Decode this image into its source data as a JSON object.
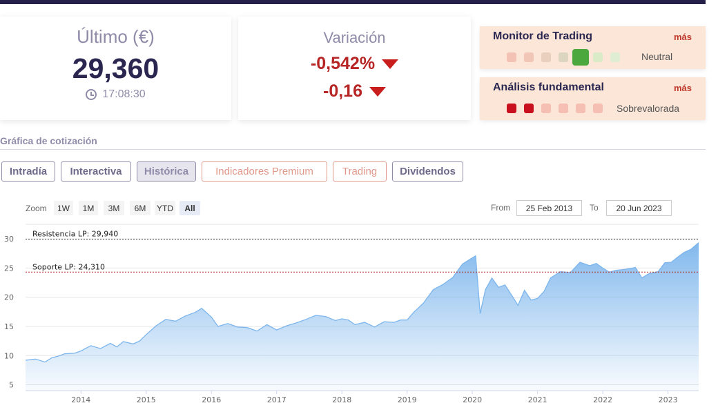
{
  "ultimo": {
    "label": "Último (€)",
    "price": "29,360",
    "time": "17:08:30"
  },
  "variacion": {
    "label": "Variación",
    "percent": "-0,542%",
    "absolute": "-0,16"
  },
  "monitor_trading": {
    "title": "Monitor de Trading",
    "more": "más",
    "status": "Neutral",
    "dots": [
      "#f4c2b4",
      "#f1c6b6",
      "#e9cfbd",
      "#dcd5c0",
      "#4aa83d",
      "#d9ebc7",
      "#dfeed3"
    ]
  },
  "analisis": {
    "title": "Análisis fundamental",
    "more": "más",
    "status": "Sobrevalorada",
    "dots": [
      "#c8101e",
      "#c8101e",
      "#f5bfb3",
      "#f5bfb3",
      "#f5bfb3",
      "#f5bfb3"
    ]
  },
  "section_title": "Gráfica de cotización",
  "tabs": [
    "Intradía",
    "Interactiva",
    "Histórica",
    "Indicadores Premium",
    "Trading",
    "Dividendos"
  ],
  "zoom": {
    "label": "Zoom",
    "buttons": [
      "1W",
      "1M",
      "3M",
      "6M",
      "YTD",
      "All"
    ]
  },
  "range": {
    "from_label": "From",
    "from": "25 Feb 2013",
    "to_label": "To",
    "to": "20 Jun 2023"
  },
  "colors": {
    "accent": "#2a2650",
    "negative": "#c81e1e",
    "series": "#7cb5ec"
  },
  "chart_data": {
    "type": "area",
    "x_ticks": [
      "2014",
      "2015",
      "2016",
      "2017",
      "2018",
      "2019",
      "2020",
      "2021",
      "2022",
      "2023"
    ],
    "y_ticks": [
      5,
      10,
      15,
      20,
      25,
      30
    ],
    "ylim": [
      4,
      32.5
    ],
    "xlim": [
      2013.15,
      2023.47
    ],
    "grid": true,
    "lines": [
      {
        "label": "Resistencia LP: 29,940",
        "value": 29.94,
        "color": "#333"
      },
      {
        "label": "Soporte LP: 24,310",
        "value": 24.31,
        "color": "#b82525"
      }
    ],
    "series": [
      {
        "x": [
          2013.15,
          2013.3,
          2013.45,
          2013.55,
          2013.65,
          2013.75,
          2013.9,
          2014.0,
          2014.15,
          2014.3,
          2014.45,
          2014.55,
          2014.65,
          2014.8,
          2014.9,
          2015.0,
          2015.15,
          2015.3,
          2015.45,
          2015.6,
          2015.75,
          2015.85,
          2016.0,
          2016.1,
          2016.25,
          2016.4,
          2016.55,
          2016.7,
          2016.85,
          2017.0,
          2017.15,
          2017.3,
          2017.45,
          2017.6,
          2017.75,
          2017.9,
          2018.0,
          2018.1,
          2018.2,
          2018.35,
          2018.5,
          2018.65,
          2018.8,
          2018.9,
          2019.0,
          2019.1,
          2019.25,
          2019.4,
          2019.55,
          2019.7,
          2019.85,
          2019.95,
          2020.05,
          2020.12,
          2020.2,
          2020.3,
          2020.4,
          2020.5,
          2020.6,
          2020.7,
          2020.8,
          2020.9,
          2021.0,
          2021.1,
          2021.2,
          2021.35,
          2021.5,
          2021.65,
          2021.8,
          2021.9,
          2022.0,
          2022.1,
          2022.2,
          2022.35,
          2022.5,
          2022.6,
          2022.7,
          2022.85,
          2022.95,
          2023.05,
          2023.15,
          2023.25,
          2023.35,
          2023.47
        ],
        "y": [
          9.2,
          9.4,
          8.9,
          9.6,
          9.9,
          10.3,
          10.4,
          10.8,
          11.7,
          11.2,
          12.1,
          11.5,
          12.4,
          12.0,
          12.5,
          13.6,
          15.1,
          16.2,
          15.9,
          16.8,
          17.4,
          18.1,
          16.6,
          15.0,
          15.5,
          14.9,
          14.8,
          14.2,
          15.3,
          14.4,
          15.1,
          15.6,
          16.2,
          16.9,
          16.7,
          16.0,
          16.3,
          16.1,
          15.3,
          15.7,
          14.9,
          15.8,
          15.7,
          16.1,
          16.1,
          17.4,
          19.0,
          21.3,
          22.2,
          23.4,
          25.7,
          26.4,
          27.1,
          17.2,
          21.3,
          23.3,
          21.7,
          22.1,
          20.4,
          18.6,
          21.2,
          19.5,
          19.8,
          21.0,
          23.3,
          24.4,
          24.2,
          26.0,
          25.4,
          25.8,
          25.0,
          24.3,
          24.6,
          24.8,
          25.1,
          23.3,
          24.0,
          24.4,
          25.9,
          26.0,
          26.9,
          27.7,
          28.2,
          29.36
        ]
      }
    ]
  }
}
